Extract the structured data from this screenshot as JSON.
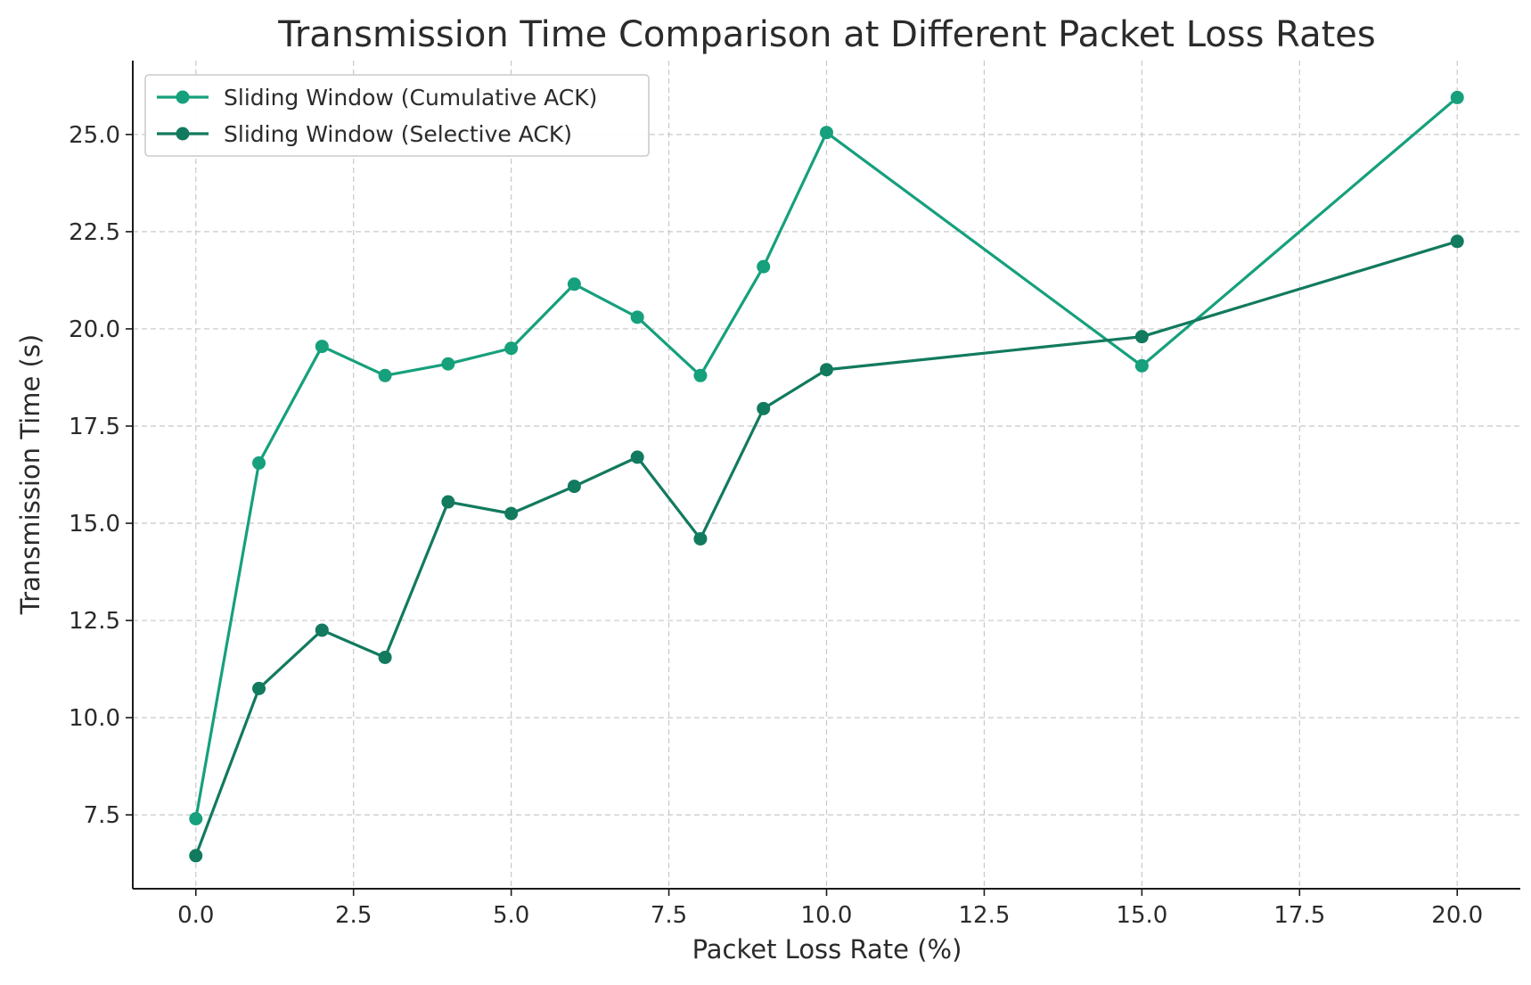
{
  "chart_data": {
    "type": "line",
    "title": "Transmission Time Comparison at Different Packet Loss Rates",
    "xlabel": "Packet Loss Rate (%)",
    "ylabel": "Transmission Time (s)",
    "xlim": [
      -1.0,
      21.0
    ],
    "ylim": [
      5.6,
      26.9
    ],
    "xticks": [
      0.0,
      2.5,
      5.0,
      7.5,
      10.0,
      12.5,
      15.0,
      17.5,
      20.0
    ],
    "xtick_labels": [
      "0.0",
      "2.5",
      "5.0",
      "7.5",
      "10.0",
      "12.5",
      "15.0",
      "17.5",
      "20.0"
    ],
    "yticks": [
      7.5,
      10.0,
      12.5,
      15.0,
      17.5,
      20.0,
      22.5,
      25.0
    ],
    "ytick_labels": [
      "7.5",
      "10.0",
      "12.5",
      "15.0",
      "17.5",
      "20.0",
      "22.5",
      "25.0"
    ],
    "grid": true,
    "legend_position": "top-left",
    "x": [
      0,
      1,
      2,
      3,
      4,
      5,
      6,
      7,
      8,
      9,
      10,
      15,
      20
    ],
    "series": [
      {
        "name": "Sliding Window (Cumulative ACK)",
        "color": "#16a07c",
        "values": [
          7.4,
          16.55,
          19.55,
          18.8,
          19.1,
          19.5,
          21.15,
          20.3,
          18.8,
          21.6,
          25.05,
          19.05,
          25.95
        ]
      },
      {
        "name": "Sliding Window (Selective ACK)",
        "color": "#127a5e",
        "values": [
          6.45,
          10.75,
          12.25,
          11.55,
          15.55,
          15.25,
          15.95,
          16.7,
          14.6,
          17.95,
          18.95,
          19.8,
          22.25
        ]
      }
    ]
  }
}
